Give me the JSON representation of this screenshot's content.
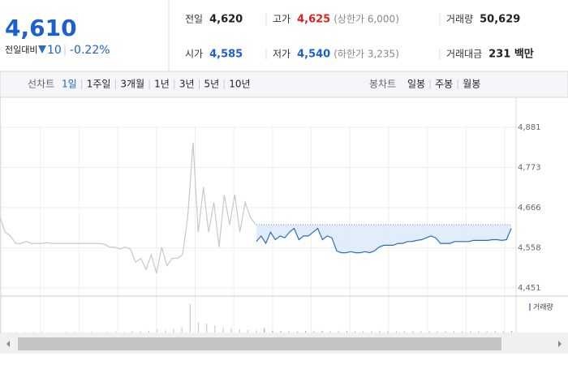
{
  "header": {
    "price": "4,610",
    "change_label": "전일대비",
    "change": "10",
    "change_rate": "-0.22%",
    "stats": [
      [
        {
          "label": "전일",
          "value": "4,620"
        },
        {
          "label": "고가",
          "value": "4,625",
          "note": "(상한가 6,000)"
        },
        {
          "label": "거래량",
          "value": "50,629"
        }
      ],
      [
        {
          "label": "시가",
          "value": "4,585"
        },
        {
          "label": "저가",
          "value": "4,540",
          "note": "(하한가 3,235)"
        },
        {
          "label": "거래대금",
          "value": "231 백만"
        }
      ]
    ]
  },
  "tabs": {
    "line_label": "선차트",
    "ranges": [
      "1일",
      "1주일",
      "3개월",
      "1년",
      "3년",
      "5년",
      "10년"
    ],
    "selected": 0,
    "candle_label": "봉차트",
    "candles": [
      "일봉",
      "주봉",
      "월봉"
    ]
  },
  "chart": {
    "type": "line",
    "ylim": [
      4429,
      4961
    ],
    "yticks": [
      {
        "value": 4881,
        "label": "4,881"
      },
      {
        "value": 4773,
        "label": "4,773"
      },
      {
        "value": 4666,
        "label": "4,666"
      },
      {
        "value": 4558,
        "label": "4,558"
      },
      {
        "value": 4451,
        "label": "4,451"
      }
    ],
    "reference": 4620,
    "grid": true,
    "series": [
      {
        "color": "#c8c8c8",
        "values": [
          4640,
          4600,
          4590,
          4570,
          4570,
          4575,
          4570,
          4570,
          4570,
          4572,
          4570,
          4570,
          4570,
          4570,
          4570,
          4570,
          4570,
          4570,
          4570,
          4570,
          4568,
          4560,
          4560,
          4555,
          4560,
          4555,
          4520,
          4530,
          4500,
          4540,
          4490,
          4560,
          4510,
          4530,
          4530,
          4540,
          4640,
          4840,
          4600,
          4720,
          4600,
          4680,
          4560,
          4700,
          4620,
          4700,
          4600,
          4680,
          4640,
          4620
        ]
      },
      {
        "color": "#2b6cc4",
        "values": [
          4575,
          4590,
          4570,
          4600,
          4580,
          4590,
          4585,
          4600,
          4610,
          4580,
          4590,
          4590,
          4600,
          4610,
          4580,
          4590,
          4585,
          4550,
          4545,
          4545,
          4548,
          4545,
          4545,
          4548,
          4545,
          4550,
          4560,
          4565,
          4565,
          4565,
          4570,
          4570,
          4575,
          4575,
          4578,
          4580,
          4585,
          4590,
          4585,
          4570,
          4570,
          4570,
          4575,
          4575,
          4575,
          4575,
          4578,
          4578,
          4578,
          4578,
          4580,
          4580,
          4578,
          4580,
          4610
        ]
      }
    ],
    "volume_label": "거래량",
    "volume": [
      300,
      200,
      200,
      150,
      200,
      200,
      150,
      150,
      200,
      200,
      150,
      200,
      150,
      200,
      300,
      200,
      400,
      300,
      500,
      800,
      600,
      900,
      1500,
      8000,
      3000,
      2500,
      2000,
      1500,
      1200,
      900,
      700,
      600,
      1200,
      500,
      400,
      300,
      300,
      400,
      300,
      500,
      300,
      300,
      400,
      300,
      300,
      300,
      400,
      300,
      300,
      300,
      300,
      300,
      300,
      300,
      300,
      300,
      300,
      300,
      300,
      300,
      300,
      300,
      400
    ]
  }
}
